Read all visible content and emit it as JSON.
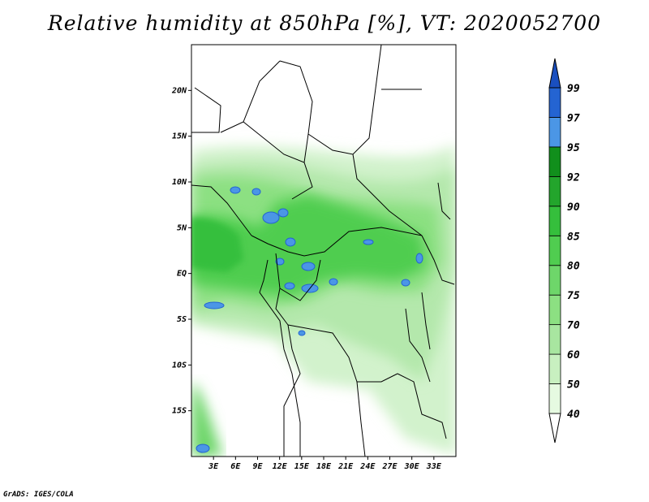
{
  "title": "Relative humidity at 850hPa [%], VT: 2020052700",
  "footer": "GrADS: IGES/COLA",
  "map": {
    "lon_range": [
      0,
      36
    ],
    "lat_range": [
      -20,
      25
    ],
    "lat_ticks": [
      {
        "value": 20,
        "label": "20N"
      },
      {
        "value": 15,
        "label": "15N"
      },
      {
        "value": 10,
        "label": "10N"
      },
      {
        "value": 5,
        "label": "5N"
      },
      {
        "value": 0,
        "label": "EQ"
      },
      {
        "value": -5,
        "label": "5S"
      },
      {
        "value": -10,
        "label": "10S"
      },
      {
        "value": -15,
        "label": "15S"
      }
    ],
    "lon_ticks": [
      {
        "value": 3,
        "label": "3E"
      },
      {
        "value": 6,
        "label": "6E"
      },
      {
        "value": 9,
        "label": "9E"
      },
      {
        "value": 12,
        "label": "12E"
      },
      {
        "value": 15,
        "label": "15E"
      },
      {
        "value": 18,
        "label": "18E"
      },
      {
        "value": 21,
        "label": "21E"
      },
      {
        "value": 24,
        "label": "24E"
      },
      {
        "value": 27,
        "label": "27E"
      },
      {
        "value": 30,
        "label": "30E"
      },
      {
        "value": 33,
        "label": "33E"
      }
    ]
  },
  "colorbar": {
    "levels": [
      "40",
      "50",
      "60",
      "70",
      "75",
      "80",
      "85",
      "90",
      "92",
      "95",
      "97",
      "99"
    ],
    "colors": [
      "#ffffff",
      "#e6fae1",
      "#c8f0c0",
      "#a8e6a0",
      "#8ce082",
      "#6ed66a",
      "#50cd50",
      "#35bf3c",
      "#23a52c",
      "#118f1c",
      "#4b96e6",
      "#2464d2",
      "#1a4fbf"
    ]
  }
}
